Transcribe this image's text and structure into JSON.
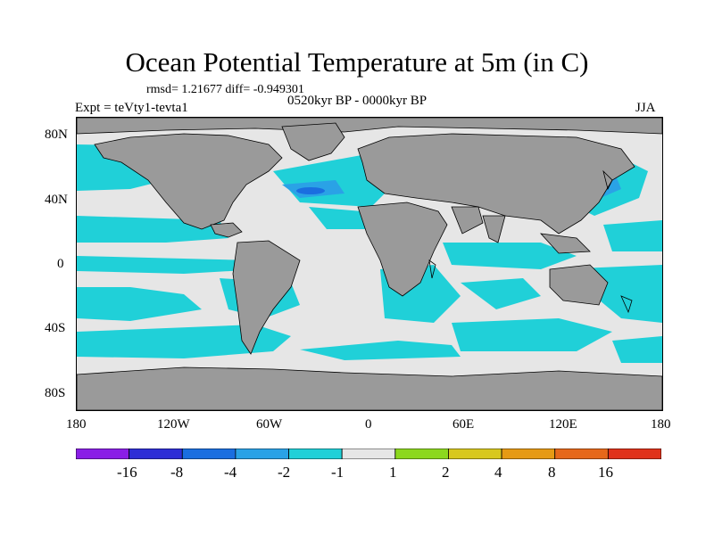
{
  "title": "Ocean Potential Temperature at 5m (in C)",
  "stats": "rmsd= 1.21677 diff= -0.949301",
  "period": "0520kyr BP - 0000kyr BP",
  "experiment": "Expt = teVty1-tevta1",
  "season": "JJA",
  "lat_labels": [
    "80N",
    "40N",
    "0",
    "40S",
    "80S"
  ],
  "lon_labels": [
    "180",
    "120W",
    "60W",
    "0",
    "60E",
    "120E",
    "180"
  ],
  "colorbar": {
    "labels": [
      "-16",
      "-8",
      "-4",
      "-2",
      "-1",
      "1",
      "2",
      "4",
      "8",
      "16"
    ],
    "colors": [
      "#8a1ee6",
      "#2e2ed6",
      "#1a6ee0",
      "#2aa2e6",
      "#20d0d8",
      "#e6e6e6",
      "#8cd81e",
      "#d8c81e",
      "#e69a14",
      "#e6681a",
      "#e0321a"
    ]
  },
  "colors": {
    "land": "#9a9a9a",
    "ocean_near_zero": "#e6e6e6",
    "ocean_cool": "#20d0d8",
    "ocean_cooler": "#2aa2e6",
    "ocean_coolest": "#1a6ee0"
  }
}
